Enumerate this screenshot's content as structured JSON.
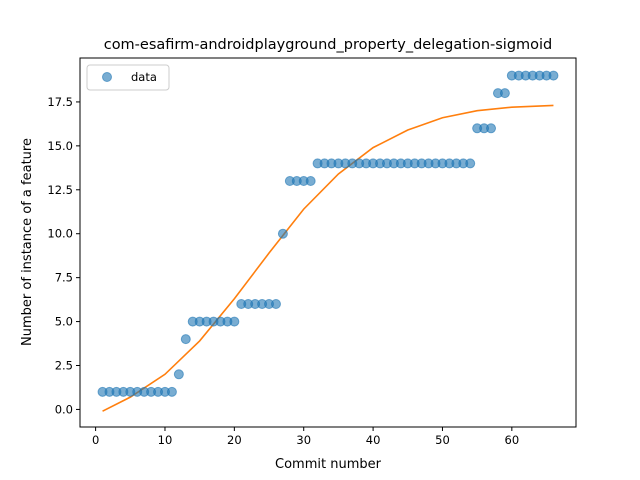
{
  "chart_data": {
    "type": "scatter",
    "title": "com-esafirm-androidplayground_property_delegation-sigmoid",
    "xlabel": "Commit number",
    "ylabel": "Number of instance of a feature",
    "xlim": [
      -2.25,
      69.25
    ],
    "ylim": [
      -1.0,
      20.0
    ],
    "xticks": [
      0,
      10,
      20,
      30,
      40,
      50,
      60
    ],
    "xtick_labels": [
      "0",
      "10",
      "20",
      "30",
      "40",
      "50",
      "60"
    ],
    "yticks": [
      0.0,
      2.5,
      5.0,
      7.5,
      10.0,
      12.5,
      15.0,
      17.5
    ],
    "ytick_labels": [
      "0.0",
      "2.5",
      "5.0",
      "7.5",
      "10.0",
      "12.5",
      "15.0",
      "17.5"
    ],
    "legend": {
      "position": "upper-left",
      "entries": [
        "data"
      ]
    },
    "series": [
      {
        "name": "data",
        "kind": "scatter",
        "color": "#1f77b4",
        "x": [
          1,
          2,
          3,
          4,
          5,
          6,
          7,
          8,
          9,
          10,
          11,
          12,
          13,
          14,
          15,
          16,
          17,
          18,
          19,
          20,
          21,
          22,
          23,
          24,
          25,
          26,
          27,
          28,
          29,
          30,
          31,
          32,
          33,
          34,
          35,
          36,
          37,
          38,
          39,
          40,
          41,
          42,
          43,
          44,
          45,
          46,
          47,
          48,
          49,
          50,
          51,
          52,
          53,
          54,
          55,
          56,
          57,
          58,
          59,
          60,
          61,
          62,
          63,
          64,
          65,
          66
        ],
        "y": [
          1,
          1,
          1,
          1,
          1,
          1,
          1,
          1,
          1,
          1,
          1,
          2,
          4,
          5,
          5,
          5,
          5,
          5,
          5,
          5,
          6,
          6,
          6,
          6,
          6,
          6,
          10,
          13,
          13,
          13,
          13,
          14,
          14,
          14,
          14,
          14,
          14,
          14,
          14,
          14,
          14,
          14,
          14,
          14,
          14,
          14,
          14,
          14,
          14,
          14,
          14,
          14,
          14,
          14,
          16,
          16,
          16,
          18,
          18,
          19,
          19,
          19,
          19,
          19,
          19,
          19
        ]
      },
      {
        "kind": "line",
        "color": "#ff7f0e",
        "x": [
          1,
          5,
          10,
          15,
          20,
          25,
          30,
          35,
          40,
          45,
          50,
          55,
          60,
          66
        ],
        "y": [
          -0.1,
          0.7,
          2.0,
          3.9,
          6.3,
          8.9,
          11.4,
          13.4,
          14.9,
          15.9,
          16.6,
          17.0,
          17.2,
          17.3
        ]
      }
    ]
  }
}
